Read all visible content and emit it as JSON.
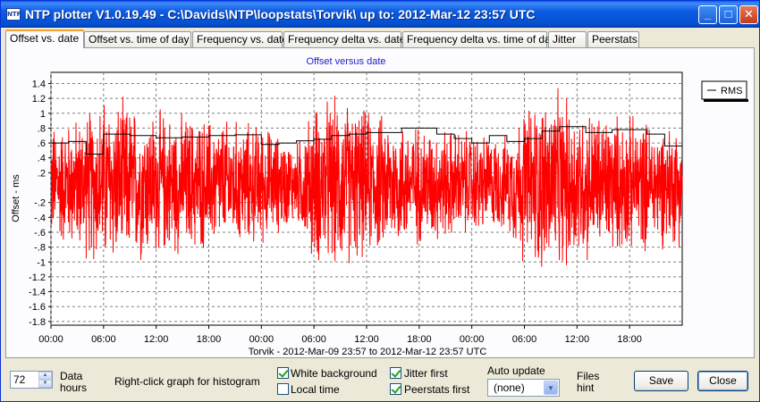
{
  "window": {
    "title": "NTP plotter V1.0.19.49 - C:\\Davids\\NTP\\loopstats\\Torvik\\  up to: 2012-Mar-12 23:57 UTC",
    "icon": "NTP",
    "controls": {
      "minimize": "_",
      "maximize": "□",
      "close": "✕"
    }
  },
  "tabs": [
    {
      "label": "Offset vs. date",
      "active": true
    },
    {
      "label": "Offset vs. time of day",
      "active": false
    },
    {
      "label": "Frequency vs. date",
      "active": false
    },
    {
      "label": "Frequency delta vs. date",
      "active": false
    },
    {
      "label": "Frequency delta vs. time of day",
      "active": false
    },
    {
      "label": "Jitter",
      "active": false
    },
    {
      "label": "Peerstats",
      "active": false
    }
  ],
  "chart_data": {
    "type": "line",
    "title": "Offset versus date",
    "ylabel": "Offset - ms",
    "xlabel": "Torvik  -  2012-Mar-09 23:57 to 2012-Mar-12 23:57 UTC",
    "ylim": [
      -1.85,
      1.55
    ],
    "yticks": [
      1.4,
      1.2,
      1,
      0.8,
      0.6,
      0.4,
      0.2,
      -0.2,
      -0.4,
      -0.6,
      -0.8,
      -1,
      -1.2,
      -1.4,
      -1.6,
      -1.8
    ],
    "ytick_labels": [
      "1.4",
      "1.2",
      "1",
      ".8",
      ".6",
      ".4",
      ".2",
      "-.2",
      "-.4",
      "-.6",
      "-.8",
      "-1",
      "-1.2",
      "-1.4",
      "-1.6",
      "-1.8"
    ],
    "xlim_hours": [
      0,
      72
    ],
    "xticks_hours": [
      0,
      6,
      12,
      18,
      24,
      30,
      36,
      42,
      48,
      54,
      60,
      66
    ],
    "xtick_labels": [
      "00:00",
      "06:00",
      "12:00",
      "18:00",
      "00:00",
      "06:00",
      "12:00",
      "18:00",
      "00:00",
      "06:00",
      "12:00",
      "18:00"
    ],
    "grid": true,
    "legend": {
      "placement": "top-right",
      "entries": [
        "RMS"
      ]
    },
    "series": [
      {
        "name": "",
        "color": "#ff0000",
        "kind": "offset",
        "amplitude_profile_hours": [
          [
            0,
            0.9
          ],
          [
            3,
            1.0
          ],
          [
            6,
            1.3
          ],
          [
            9,
            1.2
          ],
          [
            12,
            1.1
          ],
          [
            18,
            1.0
          ],
          [
            24,
            0.9
          ],
          [
            28,
            0.6
          ],
          [
            30,
            1.2
          ],
          [
            33,
            1.3
          ],
          [
            36,
            1.1
          ],
          [
            42,
            0.9
          ],
          [
            48,
            0.8
          ],
          [
            52,
            0.7
          ],
          [
            54,
            1.2
          ],
          [
            57,
            1.4
          ],
          [
            60,
            1.2
          ],
          [
            66,
            1.0
          ],
          [
            72,
            0.9
          ]
        ]
      },
      {
        "name": "RMS",
        "color": "#000000",
        "kind": "step",
        "steps": [
          [
            0,
            0.6
          ],
          [
            2,
            0.62
          ],
          [
            4,
            0.45
          ],
          [
            6,
            0.72
          ],
          [
            9,
            0.7
          ],
          [
            12,
            0.67
          ],
          [
            15,
            0.68
          ],
          [
            18,
            0.7
          ],
          [
            21,
            0.71
          ],
          [
            24,
            0.58
          ],
          [
            26,
            0.6
          ],
          [
            28,
            0.63
          ],
          [
            30,
            0.65
          ],
          [
            32,
            0.7
          ],
          [
            34,
            0.72
          ],
          [
            36,
            0.74
          ],
          [
            40,
            0.8
          ],
          [
            44,
            0.72
          ],
          [
            46,
            0.66
          ],
          [
            48,
            0.6
          ],
          [
            50,
            0.7
          ],
          [
            52,
            0.62
          ],
          [
            54,
            0.66
          ],
          [
            56,
            0.76
          ],
          [
            58,
            0.82
          ],
          [
            61,
            0.74
          ],
          [
            64,
            0.78
          ],
          [
            68,
            0.72
          ],
          [
            70,
            0.56
          ],
          [
            72,
            0.56
          ]
        ]
      }
    ]
  },
  "controls": {
    "data_hours_value": "72",
    "data_hours_label_1": "Data",
    "data_hours_label_2": "hours",
    "hint": "Right-click graph for histogram",
    "white_background": {
      "label": "White background",
      "checked": true
    },
    "local_time": {
      "label": "Local time",
      "checked": false
    },
    "jitter_first": {
      "label": "Jitter first",
      "checked": true
    },
    "peerstats_first": {
      "label": "Peerstats first",
      "checked": true
    },
    "auto_update_label": "Auto update",
    "auto_update_value": "(none)",
    "files_hint_1": "Files",
    "files_hint_2": "hint",
    "save_label": "Save",
    "close_label": "Close"
  },
  "colors": {
    "accent_tab": "#f0a033",
    "title_bar": "#0450d0",
    "offset_series": "#ff0000"
  }
}
